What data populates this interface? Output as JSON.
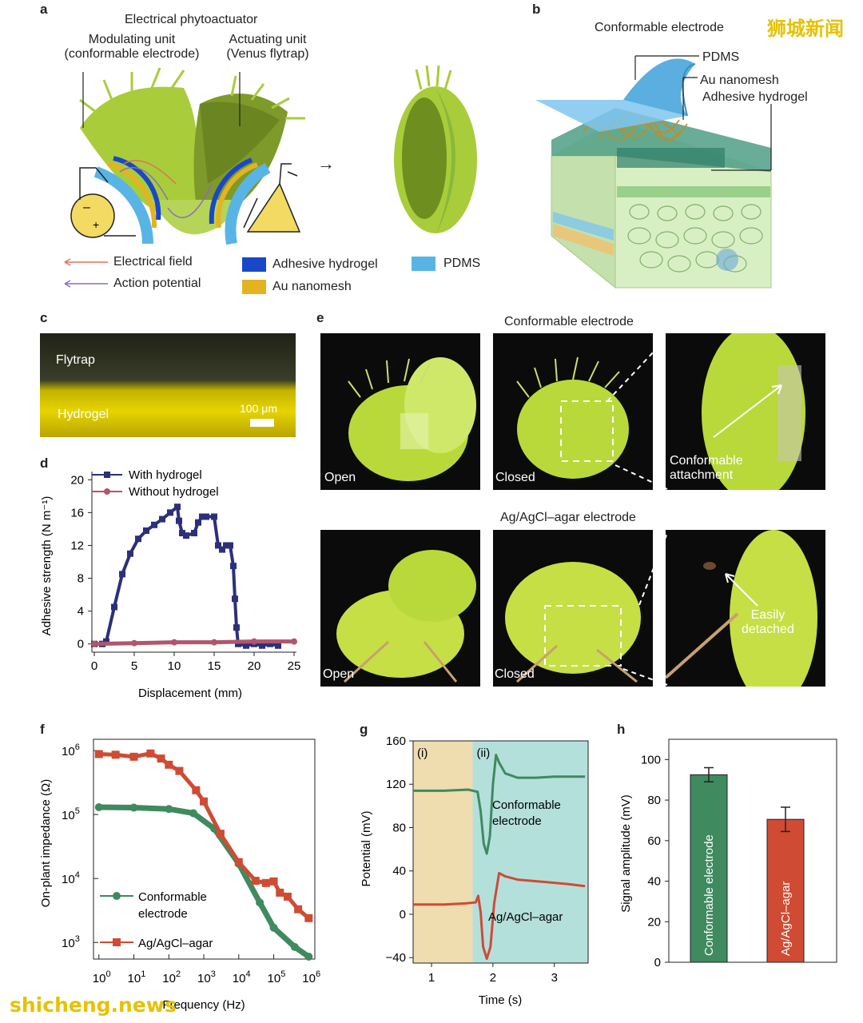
{
  "panels": {
    "a": "a",
    "b": "b",
    "c": "c",
    "d": "d",
    "e": "e",
    "f": "f",
    "g": "g",
    "h": "h"
  },
  "a": {
    "title": "Electrical phytoactuator",
    "modulating_line1": "Modulating unit",
    "modulating_line2": "(conformable electrode)",
    "actuating_line1": "Actuating unit",
    "actuating_line2": "(Venus flytrap)",
    "legend": {
      "electrical_field": "Electrical field",
      "action_potential": "Action potential",
      "adhesive_hydrogel": "Adhesive hydrogel",
      "au_nanomesh": "Au nanomesh",
      "pdms": "PDMS"
    },
    "colors": {
      "field": "#e0715a",
      "potential": "#8a6cc0",
      "hydrogel": "#1a47c9",
      "nanomesh": "#e3b321",
      "pdms": "#59b4e6",
      "leaf": "#a9cc3a",
      "leaf_dark": "#6e8e1f"
    }
  },
  "b": {
    "title": "Conformable electrode",
    "pdms": "PDMS",
    "au_nanomesh": "Au nanomesh",
    "adhesive_hydrogel": "Adhesive hydrogel"
  },
  "watermark_top": "狮城新闻",
  "watermark_bottom": "shicheng.news",
  "c": {
    "flytrap": "Flytrap",
    "hydrogel": "Hydrogel",
    "scale": "100 μm"
  },
  "e": {
    "top_title": "Conformable electrode",
    "bottom_title": "Ag/AgCl–agar electrode",
    "open": "Open",
    "closed": "Closed",
    "conf_line1": "Conformable",
    "conf_line2": "attachment",
    "easily_line1": "Easily",
    "easily_line2": "detached"
  },
  "chart_data": [
    {
      "panel": "d",
      "type": "line",
      "xlabel": "Displacement (mm)",
      "ylabel": "Adhesive strength (N m⁻¹)",
      "xlim": [
        0,
        25
      ],
      "ylim": [
        -1,
        21
      ],
      "xticks": [
        0,
        5,
        10,
        15,
        20,
        25
      ],
      "yticks": [
        0,
        4,
        8,
        12,
        16,
        20
      ],
      "series": [
        {
          "name": "With hydrogel",
          "color": "#2c2f7a",
          "x": [
            0,
            1.0,
            1.5,
            2.5,
            3.5,
            4.5,
            5.5,
            6.5,
            7.5,
            8.5,
            9.5,
            10.4,
            10.6,
            11.0,
            11.5,
            12.5,
            13.0,
            13.5,
            14.0,
            15.0,
            15.5,
            16.0,
            16.5,
            17.0,
            17.4,
            17.6,
            17.8,
            18.0,
            19.0,
            20.0,
            21.0,
            22.0,
            23.0
          ],
          "y": [
            0,
            0,
            0.3,
            4.5,
            8.5,
            11,
            12.8,
            13.8,
            14.5,
            15.2,
            16.0,
            16.7,
            15.0,
            13.5,
            13.2,
            13.5,
            14.8,
            15.5,
            15.5,
            15.5,
            12.0,
            11.5,
            12.0,
            12.0,
            9.5,
            5.5,
            2.0,
            0,
            -0.2,
            0,
            -0.2,
            0,
            -0.2
          ]
        },
        {
          "name": "Without hydrogel",
          "color": "#b0566e",
          "x": [
            0,
            5,
            10,
            15,
            20,
            25
          ],
          "y": [
            0,
            0.1,
            0.2,
            0.2,
            0.3,
            0.3
          ]
        }
      ]
    },
    {
      "panel": "f",
      "type": "line",
      "xscale": "log",
      "yscale": "log",
      "xlabel": "Frequency (Hz)",
      "ylabel": "On-plant impedance (Ω)",
      "xlim": [
        0.7,
        1500000
      ],
      "ylim": [
        550,
        1500000
      ],
      "xtick_base": "10",
      "xtick_exps": [
        "0",
        "1",
        "2",
        "3",
        "4",
        "5",
        "6"
      ],
      "ytick_exps": [
        "3",
        "4",
        "5",
        "6"
      ],
      "series": [
        {
          "name_line1": "Conformable",
          "name_line2": "electrode",
          "color": "#3f8a5e",
          "x": [
            1,
            10,
            100,
            500,
            2000,
            10000,
            40000,
            100000,
            400000,
            1000000
          ],
          "y": [
            130000,
            128000,
            122000,
            105000,
            60000,
            17000,
            4200,
            1700,
            850,
            600
          ]
        },
        {
          "name": "Ag/AgCl–agar",
          "color": "#cf4b33",
          "x": [
            1,
            3,
            10,
            30,
            60,
            100,
            200,
            600,
            1000,
            3000,
            10000,
            30000,
            60000,
            100000,
            150000,
            250000,
            500000,
            1000000
          ],
          "y": [
            880000,
            860000,
            800000,
            900000,
            750000,
            600000,
            480000,
            240000,
            160000,
            50000,
            18000,
            9200,
            8500,
            9000,
            6000,
            5200,
            3300,
            2400
          ]
        }
      ]
    },
    {
      "panel": "g",
      "type": "line",
      "xlabel": "Time (s)",
      "ylabel": "Potential (mV)",
      "xlim": [
        0.7,
        3.55
      ],
      "ylim": [
        -45,
        160
      ],
      "xticks": [
        1,
        2,
        3
      ],
      "yticks": [
        -40,
        0,
        40,
        80,
        120,
        160
      ],
      "ytick_labels": [
        "−40",
        "0",
        "40",
        "80",
        "120",
        "160"
      ],
      "regions": [
        {
          "label": "(i)",
          "from": 0.7,
          "to": 1.67,
          "color": "#efdcaf"
        },
        {
          "label": "(ii)",
          "from": 1.67,
          "to": 3.55,
          "color": "#b4e0dc"
        }
      ],
      "series": [
        {
          "name_line1": "Conformable",
          "name_line2": "electrode",
          "color": "#3f8a5e",
          "x": [
            0.7,
            1.2,
            1.6,
            1.75,
            1.8,
            1.85,
            1.9,
            1.95,
            2.0,
            2.05,
            2.1,
            2.2,
            2.4,
            2.7,
            3.0,
            3.3,
            3.5
          ],
          "y": [
            114,
            114,
            115,
            113,
            95,
            65,
            56,
            72,
            120,
            147,
            140,
            130,
            126,
            126,
            127,
            127,
            127
          ]
        },
        {
          "name": "Ag/AgCl–agar",
          "color": "#cf4b33",
          "x": [
            0.7,
            1.2,
            1.55,
            1.72,
            1.76,
            1.8,
            1.84,
            1.9,
            1.96,
            2.02,
            2.1,
            2.2,
            2.4,
            2.8,
            3.2,
            3.5
          ],
          "y": [
            9,
            9,
            10,
            11,
            17,
            2,
            -30,
            -41,
            -30,
            10,
            38,
            35,
            32,
            30,
            28,
            26
          ]
        }
      ]
    },
    {
      "panel": "h",
      "type": "bar",
      "ylabel": "Signal amplitude (mV)",
      "ylim": [
        0,
        110
      ],
      "yticks": [
        0,
        20,
        40,
        60,
        80,
        100
      ],
      "categories": [
        "Conformable electrode",
        "Ag/AgCl–agar"
      ],
      "values": [
        92.5,
        70.5
      ],
      "errors": [
        3.5,
        6
      ],
      "colors": [
        "#3f8a5e",
        "#cf4b33"
      ]
    }
  ]
}
